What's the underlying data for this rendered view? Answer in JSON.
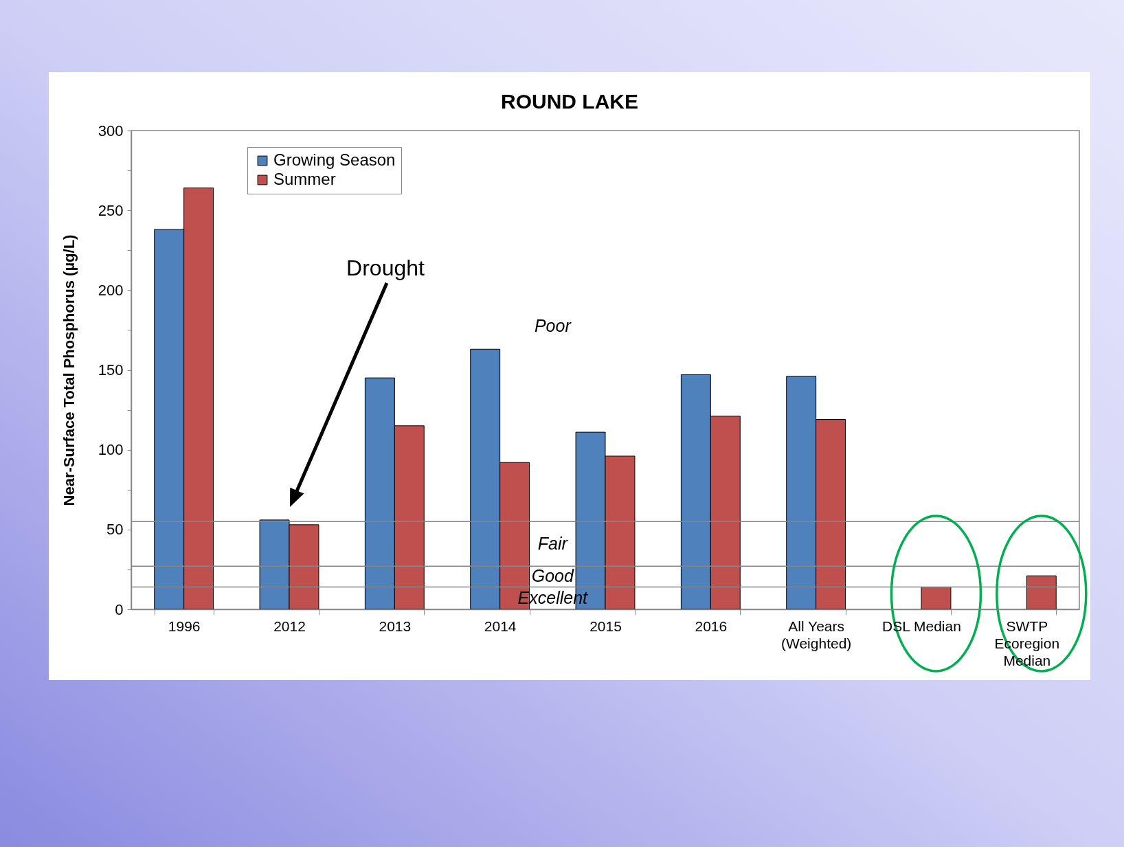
{
  "chart_data": {
    "type": "bar",
    "title": "ROUND LAKE",
    "ylabel": "Near-Surface Total Phosphorus (µg/L)",
    "categories": [
      "1996",
      "2012",
      "2013",
      "2014",
      "2015",
      "2016",
      "All Years (Weighted)",
      "DSL Median",
      "SWTP Ecoregion Median"
    ],
    "series": [
      {
        "name": "Growing Season",
        "color": "#4f81bd",
        "values": [
          238,
          56,
          145,
          163,
          111,
          147,
          146,
          null,
          null
        ]
      },
      {
        "name": "Summer",
        "color": "#c0504d",
        "values": [
          264,
          53,
          115,
          92,
          96,
          121,
          119,
          14,
          21
        ]
      }
    ],
    "ylim": [
      0,
      300
    ],
    "yticks": [
      0,
      {
        "value": 25,
        "label": null
      },
      50,
      {
        "value": 75,
        "label": null
      },
      100,
      {
        "value": 125,
        "label": null
      },
      150,
      {
        "value": 175,
        "label": null
      },
      200,
      {
        "value": 225,
        "label": null
      },
      250,
      {
        "value": 275,
        "label": null
      },
      300
    ],
    "legend": "top left",
    "ref_lines": [
      {
        "axis": "y",
        "value": 55,
        "color": "#868686"
      },
      {
        "axis": "y",
        "value": 27,
        "color": "#868686"
      },
      {
        "axis": "y",
        "value": 14,
        "color": "#868686"
      }
    ],
    "annotations": [
      "Drought",
      "Poor",
      "Fair",
      "Good",
      "Excellent"
    ]
  }
}
